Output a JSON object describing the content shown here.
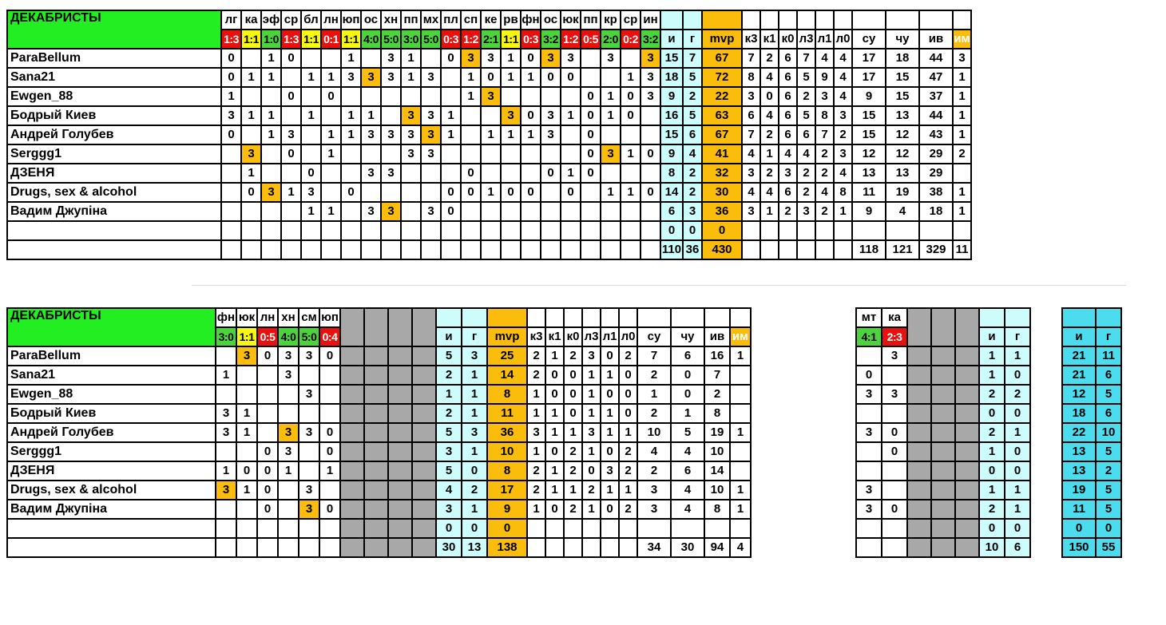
{
  "team_name": "ДЕКАБРИСТЫ",
  "players": [
    "ParaBellum",
    "Sana21",
    "Ewgen_88",
    "Бодрый Киев",
    "Андрей Голубев",
    "Serggg1",
    "ДЗЕНЯ",
    "Drugs, sex & alcohol",
    "Вадим Джупіна"
  ],
  "colors": {
    "green": "#4cd43c",
    "yellow": "#f7f711",
    "red": "#e8110e",
    "orange": "#fbbd0b",
    "light_cyan": "#ccfcfc",
    "cyan": "#4bdcee",
    "gray": "#a8a8a8",
    "name_header": "#22ee22"
  },
  "t1": {
    "games": [
      {
        "code": "лг",
        "score": "1:3",
        "res": "r"
      },
      {
        "code": "ка",
        "score": "1:1",
        "res": "y"
      },
      {
        "code": "эф",
        "score": "1:0",
        "res": "g"
      },
      {
        "code": "ср",
        "score": "1:3",
        "res": "r"
      },
      {
        "code": "бл",
        "score": "1:1",
        "res": "y"
      },
      {
        "code": "лн",
        "score": "0:1",
        "res": "r"
      },
      {
        "code": "юп",
        "score": "1:1",
        "res": "y"
      },
      {
        "code": "ос",
        "score": "4:0",
        "res": "g"
      },
      {
        "code": "хн",
        "score": "5:0",
        "res": "g"
      },
      {
        "code": "пп",
        "score": "3:0",
        "res": "g"
      },
      {
        "code": "мх",
        "score": "5:0",
        "res": "g"
      },
      {
        "code": "пл",
        "score": "0:3",
        "res": "r"
      },
      {
        "code": "сп",
        "score": "1:2",
        "res": "r"
      },
      {
        "code": "ке",
        "score": "2:1",
        "res": "g"
      },
      {
        "code": "рв",
        "score": "1:1",
        "res": "y"
      },
      {
        "code": "фн",
        "score": "0:3",
        "res": "r"
      },
      {
        "code": "ос",
        "score": "3:2",
        "res": "g"
      },
      {
        "code": "юк",
        "score": "1:2",
        "res": "r"
      },
      {
        "code": "пп",
        "score": "0:5",
        "res": "r"
      },
      {
        "code": "кр",
        "score": "2:0",
        "res": "g"
      },
      {
        "code": "ср",
        "score": "0:2",
        "res": "r"
      },
      {
        "code": "ин",
        "score": "3:2",
        "res": "g"
      }
    ],
    "stat_headers": [
      "и",
      "г",
      "mvp",
      "к3",
      "к1",
      "к0",
      "л3",
      "л1",
      "л0",
      "су",
      "чу",
      "ив",
      "им"
    ],
    "rows": [
      {
        "cells": [
          "0",
          "",
          "1",
          "0",
          "",
          "",
          "1",
          "",
          "3",
          "1",
          "",
          "0",
          "3*",
          "3",
          "1",
          "0",
          "3*",
          "3",
          "",
          "3",
          "",
          "3*"
        ],
        "stats": [
          "15",
          "7",
          "67",
          "7",
          "2",
          "6",
          "7",
          "4",
          "4",
          "17",
          "18",
          "44",
          "3"
        ]
      },
      {
        "cells": [
          "0",
          "1",
          "1",
          "",
          "1",
          "1",
          "3",
          "3*",
          "3",
          "1",
          "3",
          "",
          "1",
          "0",
          "1",
          "1",
          "0",
          "0",
          "",
          "",
          "1",
          "3"
        ],
        "stats": [
          "18",
          "5",
          "72",
          "8",
          "4",
          "6",
          "5",
          "9",
          "4",
          "17",
          "15",
          "47",
          "1"
        ]
      },
      {
        "cells": [
          "1",
          "",
          "",
          "0",
          "",
          "0",
          "",
          "",
          "",
          "",
          "",
          "",
          "1",
          "3*",
          "",
          "",
          "",
          "",
          "0",
          "1",
          "0",
          "3"
        ],
        "stats": [
          "9",
          "2",
          "22",
          "3",
          "0",
          "6",
          "2",
          "3",
          "4",
          "9",
          "15",
          "37",
          "1"
        ]
      },
      {
        "cells": [
          "3",
          "1",
          "1",
          "",
          "1",
          "",
          "1",
          "1",
          "",
          "3*",
          "3",
          "1",
          "",
          "",
          "3*",
          "0",
          "3",
          "1",
          "0",
          "1",
          "0",
          ""
        ],
        "stats": [
          "16",
          "5",
          "63",
          "6",
          "4",
          "6",
          "5",
          "8",
          "3",
          "15",
          "13",
          "44",
          "1"
        ]
      },
      {
        "cells": [
          "0",
          "",
          "1",
          "3",
          "",
          "1",
          "1",
          "3",
          "3",
          "3",
          "3*",
          "1",
          "",
          "1",
          "1",
          "1",
          "3",
          "",
          "0",
          "",
          "",
          ""
        ],
        "stats": [
          "15",
          "6",
          "67",
          "7",
          "2",
          "6",
          "6",
          "7",
          "2",
          "15",
          "12",
          "43",
          "1"
        ]
      },
      {
        "cells": [
          "",
          "3*",
          "",
          "0",
          "",
          "1",
          "",
          "",
          "",
          "3",
          "3",
          "",
          "",
          "",
          "",
          "",
          "",
          "",
          "0",
          "3*",
          "1",
          "0"
        ],
        "stats": [
          "9",
          "4",
          "41",
          "4",
          "1",
          "4",
          "4",
          "2",
          "3",
          "12",
          "12",
          "29",
          "2"
        ]
      },
      {
        "cells": [
          "",
          "1",
          "",
          "",
          "0",
          "",
          "",
          "3",
          "3",
          "",
          "",
          "",
          "0",
          "",
          "",
          "",
          "0",
          "1",
          "0",
          "",
          "",
          ""
        ],
        "stats": [
          "8",
          "2",
          "32",
          "3",
          "2",
          "3",
          "2",
          "2",
          "4",
          "13",
          "13",
          "29",
          ""
        ]
      },
      {
        "cells": [
          "",
          "0",
          "3*",
          "1",
          "3",
          "",
          "0",
          "",
          "",
          "",
          "",
          "0",
          "0",
          "1",
          "0",
          "0",
          "",
          "0",
          "",
          "1",
          "1",
          "0"
        ],
        "stats": [
          "14",
          "2",
          "30",
          "4",
          "4",
          "6",
          "2",
          "4",
          "8",
          "11",
          "19",
          "38",
          "1"
        ]
      },
      {
        "cells": [
          "",
          "",
          "",
          "",
          "1",
          "1",
          "",
          "3",
          "3*",
          "",
          "3",
          "0",
          "",
          "",
          "",
          "",
          "",
          "",
          "",
          "",
          "",
          ""
        ],
        "stats": [
          "6",
          "3",
          "36",
          "3",
          "1",
          "2",
          "3",
          "2",
          "1",
          "9",
          "4",
          "18",
          "1"
        ]
      }
    ],
    "empty_stats": [
      "0",
      "0",
      "0"
    ],
    "total_stats": [
      "110",
      "36",
      "430",
      "",
      "",
      "",
      "",
      "",
      "",
      "118",
      "121",
      "329",
      "11"
    ]
  },
  "t2": {
    "games": [
      {
        "code": "фн",
        "score": "3:0",
        "res": "g"
      },
      {
        "code": "юк",
        "score": "1:1",
        "res": "y"
      },
      {
        "code": "лн",
        "score": "0:5",
        "res": "r"
      },
      {
        "code": "хн",
        "score": "4:0",
        "res": "g"
      },
      {
        "code": "см",
        "score": "5:0",
        "res": "g"
      },
      {
        "code": "юп",
        "score": "0:4",
        "res": "r"
      }
    ],
    "stat_headers": [
      "и",
      "г",
      "mvp",
      "к3",
      "к1",
      "к0",
      "л3",
      "л1",
      "л0",
      "су",
      "чу",
      "ив",
      "им"
    ],
    "rows": [
      {
        "cells": [
          "",
          "3*",
          "0",
          "3",
          "3",
          "0"
        ],
        "stats": [
          "5",
          "3",
          "25",
          "2",
          "1",
          "2",
          "3",
          "0",
          "2",
          "7",
          "6",
          "16",
          "1"
        ]
      },
      {
        "cells": [
          "1",
          "",
          "",
          "3",
          "",
          ""
        ],
        "stats": [
          "2",
          "1",
          "14",
          "2",
          "0",
          "0",
          "1",
          "1",
          "0",
          "2",
          "0",
          "7",
          ""
        ]
      },
      {
        "cells": [
          "",
          "",
          "",
          "",
          "3",
          ""
        ],
        "stats": [
          "1",
          "1",
          "8",
          "1",
          "0",
          "0",
          "1",
          "0",
          "0",
          "1",
          "0",
          "2",
          ""
        ]
      },
      {
        "cells": [
          "3",
          "1",
          "",
          "",
          "",
          ""
        ],
        "stats": [
          "2",
          "1",
          "11",
          "1",
          "1",
          "0",
          "1",
          "1",
          "0",
          "2",
          "1",
          "8",
          ""
        ]
      },
      {
        "cells": [
          "3",
          "1",
          "",
          "3*",
          "3",
          "0"
        ],
        "stats": [
          "5",
          "3",
          "36",
          "3",
          "1",
          "1",
          "3",
          "1",
          "1",
          "10",
          "5",
          "19",
          "1"
        ]
      },
      {
        "cells": [
          "",
          "",
          "0",
          "3",
          "",
          "0"
        ],
        "stats": [
          "3",
          "1",
          "10",
          "1",
          "0",
          "2",
          "1",
          "0",
          "2",
          "4",
          "4",
          "10",
          ""
        ]
      },
      {
        "cells": [
          "1",
          "0",
          "0",
          "1",
          "",
          "1"
        ],
        "stats": [
          "5",
          "0",
          "8",
          "2",
          "1",
          "2",
          "0",
          "3",
          "2",
          "2",
          "6",
          "14",
          ""
        ]
      },
      {
        "cells": [
          "3*",
          "1",
          "0",
          "",
          "3",
          ""
        ],
        "stats": [
          "4",
          "2",
          "17",
          "2",
          "1",
          "1",
          "2",
          "1",
          "1",
          "3",
          "4",
          "10",
          "1"
        ]
      },
      {
        "cells": [
          "",
          "",
          "0",
          "",
          "3*",
          "0"
        ],
        "stats": [
          "3",
          "1",
          "9",
          "1",
          "0",
          "2",
          "1",
          "0",
          "2",
          "3",
          "4",
          "8",
          "1"
        ]
      }
    ],
    "empty_stats": [
      "0",
      "0",
      "0"
    ],
    "total_stats": [
      "30",
      "13",
      "138",
      "",
      "",
      "",
      "",
      "",
      "",
      "34",
      "30",
      "94",
      "4"
    ]
  },
  "t3": {
    "games": [
      {
        "code": "мт",
        "score": "4:1",
        "res": "g"
      },
      {
        "code": "ка",
        "score": "2:3",
        "res": "r"
      }
    ],
    "stat_headers": [
      "и",
      "г"
    ],
    "rows": [
      {
        "cells": [
          "",
          "3"
        ],
        "stats": [
          "1",
          "1"
        ]
      },
      {
        "cells": [
          "0",
          ""
        ],
        "stats": [
          "1",
          "0"
        ]
      },
      {
        "cells": [
          "3",
          "3"
        ],
        "stats": [
          "2",
          "2"
        ]
      },
      {
        "cells": [
          "",
          ""
        ],
        "stats": [
          "0",
          "0"
        ]
      },
      {
        "cells": [
          "3",
          "0"
        ],
        "stats": [
          "2",
          "1"
        ]
      },
      {
        "cells": [
          "",
          "0"
        ],
        "stats": [
          "1",
          "0"
        ]
      },
      {
        "cells": [
          "",
          ""
        ],
        "stats": [
          "0",
          "0"
        ]
      },
      {
        "cells": [
          "3",
          ""
        ],
        "stats": [
          "1",
          "1"
        ]
      },
      {
        "cells": [
          "3",
          "0"
        ],
        "stats": [
          "2",
          "1"
        ]
      }
    ],
    "empty_stats": [
      "0",
      "0"
    ],
    "total_stats": [
      "10",
      "6"
    ]
  },
  "t4": {
    "stat_headers": [
      "и",
      "г"
    ],
    "rows": [
      [
        "21",
        "11"
      ],
      [
        "21",
        "6"
      ],
      [
        "12",
        "5"
      ],
      [
        "18",
        "6"
      ],
      [
        "22",
        "10"
      ],
      [
        "13",
        "5"
      ],
      [
        "13",
        "2"
      ],
      [
        "19",
        "5"
      ],
      [
        "11",
        "5"
      ]
    ],
    "empty": [
      "0",
      "0"
    ],
    "total": [
      "150",
      "55"
    ]
  }
}
